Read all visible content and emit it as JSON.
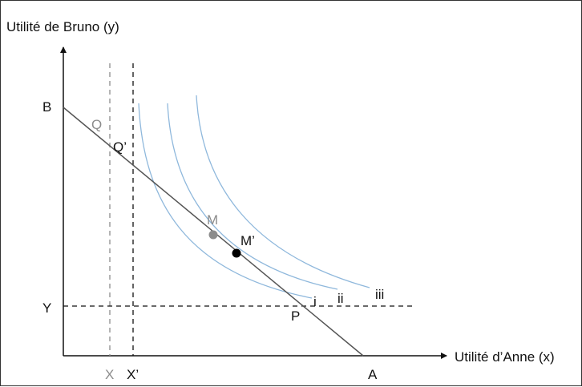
{
  "axes": {
    "y_title": "Utilité de Bruno (y)",
    "x_title": "Utilité d’Anne (x)"
  },
  "points": {
    "B": "B",
    "A": "A",
    "Y": "Y",
    "X": "X",
    "X_prime": "X’",
    "Q": "Q",
    "Q_prime": "Q’",
    "M": "M",
    "M_prime": "M’",
    "P": "P"
  },
  "curves": {
    "i": "i",
    "ii": "ii",
    "iii": "iii"
  },
  "colors": {
    "axis": "#111111",
    "frontier": "#555555",
    "indifference": "#8fb8dc",
    "gray": "#8c8c8c",
    "black": "#000000"
  }
}
